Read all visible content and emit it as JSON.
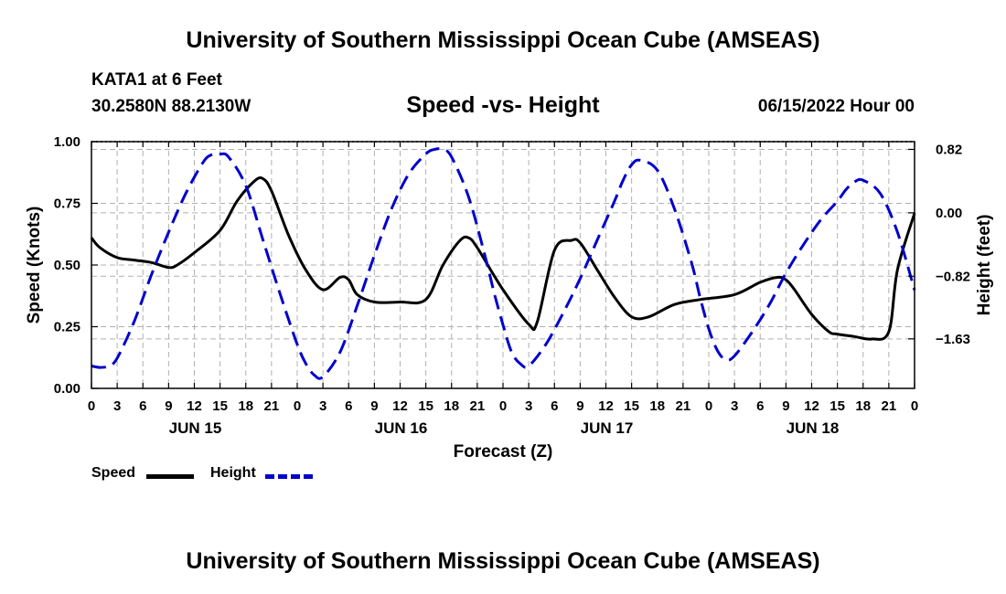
{
  "header": {
    "title": "University of Southern Mississippi Ocean Cube (AMSEAS)",
    "station": "KATA1 at 6 Feet",
    "coordinates": "30.2580N  88.2130W",
    "chart_title": "Speed -vs- Height",
    "date": "06/15/2022 Hour 00"
  },
  "footer": {
    "title": "University of Southern Mississippi Ocean Cube (AMSEAS)"
  },
  "legend": {
    "speed_label": "Speed",
    "height_label": "Height"
  },
  "chart_data": {
    "type": "line",
    "title": "Speed -vs- Height",
    "xlabel": "Forecast (Z)",
    "ylabel": "Speed (Knots)",
    "y2label": "Height (feet)",
    "xlim": [
      0,
      96
    ],
    "ylim": [
      0,
      1.0
    ],
    "y2lim": [
      -2.27,
      0.92
    ],
    "grid": true,
    "x_tick_step_hours": 3,
    "x_tick_labels": [
      "0",
      "3",
      "6",
      "9",
      "12",
      "15",
      "18",
      "21",
      "0",
      "3",
      "6",
      "9",
      "12",
      "15",
      "18",
      "21",
      "0",
      "3",
      "6",
      "9",
      "12",
      "15",
      "18",
      "21",
      "0",
      "3",
      "6",
      "9",
      "12",
      "15",
      "18",
      "21",
      "0"
    ],
    "day_labels": [
      {
        "label": "JUN 15",
        "hour": 12
      },
      {
        "label": "JUN 16",
        "hour": 36
      },
      {
        "label": "JUN 17",
        "hour": 60
      },
      {
        "label": "JUN 18",
        "hour": 84
      }
    ],
    "y_ticks": [
      0,
      0.25,
      0.5,
      0.75,
      1.0
    ],
    "y_tick_labels": [
      "0.00",
      "0.25",
      "0.50",
      "0.75",
      "1.00"
    ],
    "y2_ticks": [
      0.82,
      0.0,
      -0.82,
      -1.63
    ],
    "y2_tick_labels": [
      "0.82",
      "0.00",
      "−0.82",
      "−1.63"
    ],
    "series": [
      {
        "name": "Speed",
        "axis": "left",
        "color": "#000000",
        "dash": "solid",
        "x": [
          0,
          1,
          3,
          5,
          7,
          9,
          10,
          12,
          15,
          17,
          19,
          20,
          21,
          23,
          25,
          27,
          29,
          30,
          31,
          33,
          36,
          39,
          41,
          43,
          44,
          45,
          48,
          51,
          52,
          54,
          56,
          57,
          59,
          61,
          63,
          65,
          68,
          71,
          75,
          78,
          80,
          81,
          82,
          84,
          86,
          87,
          89,
          91,
          93,
          94,
          96
        ],
        "y": [
          0.61,
          0.57,
          0.53,
          0.52,
          0.51,
          0.49,
          0.5,
          0.55,
          0.64,
          0.76,
          0.84,
          0.85,
          0.8,
          0.62,
          0.48,
          0.4,
          0.45,
          0.44,
          0.38,
          0.35,
          0.35,
          0.36,
          0.5,
          0.6,
          0.61,
          0.57,
          0.4,
          0.26,
          0.27,
          0.56,
          0.6,
          0.59,
          0.48,
          0.37,
          0.29,
          0.29,
          0.34,
          0.36,
          0.38,
          0.43,
          0.45,
          0.44,
          0.4,
          0.3,
          0.23,
          0.22,
          0.21,
          0.2,
          0.23,
          0.48,
          0.71
        ]
      },
      {
        "name": "Height",
        "axis": "right",
        "color": "#0000cc",
        "dash": "dashed",
        "x": [
          0,
          1,
          2,
          3,
          5,
          7,
          9,
          11,
          13,
          14,
          15,
          16,
          18,
          20,
          22,
          24,
          25,
          26,
          27,
          29,
          31,
          33,
          35,
          37,
          39,
          40,
          41,
          42,
          44,
          46,
          47,
          48,
          49,
          50,
          51,
          53,
          55,
          57,
          59,
          61,
          62,
          63,
          64,
          66,
          68,
          70,
          71,
          72,
          73,
          74,
          75,
          77,
          79,
          81,
          83,
          85,
          87,
          88,
          89,
          90,
          92,
          94,
          96
        ],
        "y": [
          -1.98,
          -2.0,
          -1.98,
          -1.88,
          -1.4,
          -0.8,
          -0.25,
          0.25,
          0.65,
          0.75,
          0.76,
          0.72,
          0.35,
          -0.35,
          -1.05,
          -1.7,
          -1.95,
          -2.1,
          -2.12,
          -1.8,
          -1.2,
          -0.55,
          0.05,
          0.5,
          0.76,
          0.82,
          0.82,
          0.72,
          0.2,
          -0.6,
          -1.05,
          -1.45,
          -1.8,
          -1.95,
          -1.98,
          -1.7,
          -1.3,
          -0.85,
          -0.35,
          0.15,
          0.42,
          0.62,
          0.68,
          0.55,
          0.05,
          -0.65,
          -1.1,
          -1.5,
          -1.78,
          -1.9,
          -1.85,
          -1.55,
          -1.2,
          -0.78,
          -0.42,
          -0.1,
          0.15,
          0.3,
          0.4,
          0.42,
          0.25,
          -0.25,
          -1.0
        ]
      }
    ]
  }
}
